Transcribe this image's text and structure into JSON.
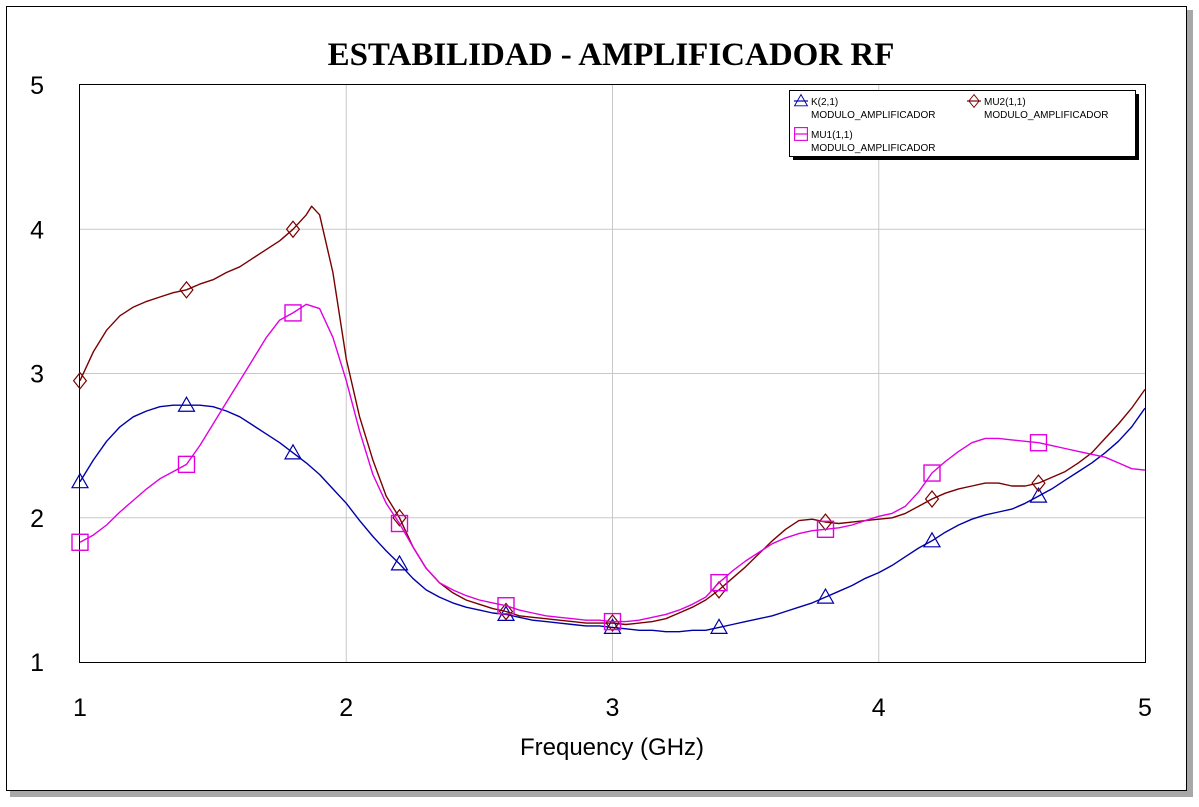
{
  "chart_data": {
    "type": "line",
    "title": "ESTABILIDAD - AMPLIFICADOR RF",
    "xlabel": "Frequency (GHz)",
    "ylabel": "",
    "xlim": [
      1,
      5
    ],
    "ylim": [
      1,
      5
    ],
    "xticks": [
      "1",
      "2",
      "3",
      "4",
      "5"
    ],
    "yticks": [
      "1",
      "2",
      "3",
      "4",
      "5"
    ],
    "grid": true,
    "legend_position": "top-right",
    "series": [
      {
        "name": "K(2,1)",
        "subtitle": "MODULO_AMPLIFICADOR",
        "color": "#0000a8",
        "marker": "triangle",
        "marker_x": [
          1.0,
          1.4,
          1.8,
          2.2,
          2.6,
          3.0,
          3.4,
          3.8,
          4.2,
          4.6
        ],
        "x": [
          1.0,
          1.05,
          1.1,
          1.15,
          1.2,
          1.25,
          1.3,
          1.35,
          1.4,
          1.45,
          1.5,
          1.55,
          1.6,
          1.65,
          1.7,
          1.75,
          1.8,
          1.85,
          1.9,
          1.95,
          2.0,
          2.05,
          2.1,
          2.15,
          2.2,
          2.25,
          2.3,
          2.35,
          2.4,
          2.45,
          2.5,
          2.55,
          2.6,
          2.65,
          2.7,
          2.75,
          2.8,
          2.85,
          2.9,
          2.95,
          3.0,
          3.05,
          3.1,
          3.15,
          3.2,
          3.25,
          3.3,
          3.35,
          3.4,
          3.45,
          3.5,
          3.55,
          3.6,
          3.65,
          3.7,
          3.75,
          3.8,
          3.85,
          3.9,
          3.95,
          4.0,
          4.05,
          4.1,
          4.15,
          4.2,
          4.25,
          4.3,
          4.35,
          4.4,
          4.45,
          4.5,
          4.55,
          4.6,
          4.65,
          4.7,
          4.75,
          4.8,
          4.85,
          4.9,
          4.95,
          5.0
        ],
        "y": [
          2.25,
          2.4,
          2.53,
          2.63,
          2.7,
          2.74,
          2.77,
          2.78,
          2.78,
          2.78,
          2.77,
          2.74,
          2.7,
          2.64,
          2.58,
          2.52,
          2.45,
          2.38,
          2.3,
          2.2,
          2.1,
          1.98,
          1.87,
          1.77,
          1.68,
          1.58,
          1.5,
          1.45,
          1.41,
          1.38,
          1.36,
          1.34,
          1.33,
          1.31,
          1.29,
          1.28,
          1.27,
          1.26,
          1.25,
          1.25,
          1.24,
          1.23,
          1.22,
          1.22,
          1.21,
          1.21,
          1.22,
          1.22,
          1.24,
          1.26,
          1.28,
          1.3,
          1.32,
          1.35,
          1.38,
          1.41,
          1.45,
          1.49,
          1.53,
          1.58,
          1.62,
          1.67,
          1.73,
          1.79,
          1.84,
          1.9,
          1.95,
          1.99,
          2.02,
          2.04,
          2.06,
          2.1,
          2.15,
          2.2,
          2.26,
          2.32,
          2.38,
          2.45,
          2.53,
          2.63,
          2.76
        ]
      },
      {
        "name": "MU2(1,1)",
        "subtitle": "MODULO_AMPLIFICADOR",
        "color": "#7a0000",
        "marker": "diamond",
        "marker_x": [
          1.0,
          1.4,
          1.8,
          2.2,
          2.6,
          3.0,
          3.4,
          3.8,
          4.2,
          4.6
        ],
        "x": [
          1.0,
          1.05,
          1.1,
          1.15,
          1.2,
          1.25,
          1.3,
          1.35,
          1.4,
          1.45,
          1.5,
          1.55,
          1.6,
          1.65,
          1.7,
          1.75,
          1.8,
          1.85,
          1.87,
          1.9,
          1.95,
          2.0,
          2.05,
          2.1,
          2.15,
          2.2,
          2.25,
          2.3,
          2.35,
          2.4,
          2.45,
          2.5,
          2.55,
          2.6,
          2.65,
          2.7,
          2.75,
          2.8,
          2.85,
          2.9,
          2.95,
          3.0,
          3.05,
          3.1,
          3.15,
          3.2,
          3.25,
          3.3,
          3.35,
          3.4,
          3.45,
          3.5,
          3.55,
          3.6,
          3.65,
          3.7,
          3.75,
          3.8,
          3.85,
          3.9,
          3.95,
          4.0,
          4.05,
          4.1,
          4.15,
          4.2,
          4.25,
          4.3,
          4.35,
          4.4,
          4.45,
          4.5,
          4.55,
          4.6,
          4.65,
          4.7,
          4.75,
          4.8,
          4.85,
          4.9,
          4.95,
          5.0
        ],
        "y": [
          2.95,
          3.15,
          3.3,
          3.4,
          3.46,
          3.5,
          3.53,
          3.56,
          3.58,
          3.62,
          3.65,
          3.7,
          3.74,
          3.8,
          3.86,
          3.92,
          4.0,
          4.1,
          4.16,
          4.1,
          3.7,
          3.1,
          2.7,
          2.4,
          2.15,
          2.0,
          1.8,
          1.65,
          1.55,
          1.48,
          1.43,
          1.4,
          1.37,
          1.35,
          1.32,
          1.31,
          1.3,
          1.29,
          1.28,
          1.27,
          1.27,
          1.27,
          1.26,
          1.27,
          1.28,
          1.3,
          1.34,
          1.38,
          1.43,
          1.5,
          1.58,
          1.66,
          1.75,
          1.84,
          1.92,
          1.98,
          1.99,
          1.97,
          1.96,
          1.97,
          1.98,
          1.99,
          2.0,
          2.03,
          2.08,
          2.13,
          2.17,
          2.2,
          2.22,
          2.24,
          2.24,
          2.22,
          2.22,
          2.24,
          2.28,
          2.32,
          2.38,
          2.45,
          2.55,
          2.65,
          2.76,
          2.89
        ]
      },
      {
        "name": "MU1(1,1)",
        "subtitle": "MODULO_AMPLIFICADOR",
        "color": "#e000e0",
        "marker": "square",
        "marker_x": [
          1.0,
          1.4,
          1.8,
          2.2,
          2.6,
          3.0,
          3.4,
          3.8,
          4.2,
          4.6
        ],
        "x": [
          1.0,
          1.05,
          1.1,
          1.15,
          1.2,
          1.25,
          1.3,
          1.35,
          1.4,
          1.45,
          1.5,
          1.55,
          1.6,
          1.65,
          1.7,
          1.75,
          1.8,
          1.85,
          1.9,
          1.95,
          2.0,
          2.05,
          2.1,
          2.15,
          2.2,
          2.25,
          2.3,
          2.35,
          2.4,
          2.45,
          2.5,
          2.55,
          2.6,
          2.65,
          2.7,
          2.75,
          2.8,
          2.85,
          2.9,
          2.95,
          3.0,
          3.05,
          3.1,
          3.15,
          3.2,
          3.25,
          3.3,
          3.35,
          3.4,
          3.45,
          3.5,
          3.55,
          3.6,
          3.65,
          3.7,
          3.75,
          3.8,
          3.85,
          3.9,
          3.95,
          4.0,
          4.05,
          4.1,
          4.15,
          4.2,
          4.25,
          4.3,
          4.35,
          4.4,
          4.45,
          4.5,
          4.55,
          4.6,
          4.65,
          4.7,
          4.75,
          4.8,
          4.85,
          4.9,
          4.95,
          5.0
        ],
        "y": [
          1.83,
          1.88,
          1.95,
          2.04,
          2.12,
          2.2,
          2.27,
          2.32,
          2.37,
          2.5,
          2.65,
          2.8,
          2.95,
          3.1,
          3.25,
          3.37,
          3.42,
          3.48,
          3.45,
          3.25,
          2.95,
          2.6,
          2.3,
          2.1,
          1.96,
          1.8,
          1.65,
          1.55,
          1.5,
          1.46,
          1.43,
          1.41,
          1.39,
          1.36,
          1.34,
          1.32,
          1.31,
          1.3,
          1.29,
          1.29,
          1.28,
          1.28,
          1.29,
          1.31,
          1.33,
          1.36,
          1.4,
          1.45,
          1.55,
          1.63,
          1.7,
          1.76,
          1.82,
          1.86,
          1.89,
          1.91,
          1.92,
          1.93,
          1.95,
          1.98,
          2.01,
          2.03,
          2.08,
          2.18,
          2.31,
          2.39,
          2.46,
          2.52,
          2.55,
          2.55,
          2.54,
          2.53,
          2.52,
          2.5,
          2.48,
          2.46,
          2.44,
          2.42,
          2.38,
          2.34,
          2.33
        ]
      }
    ]
  }
}
